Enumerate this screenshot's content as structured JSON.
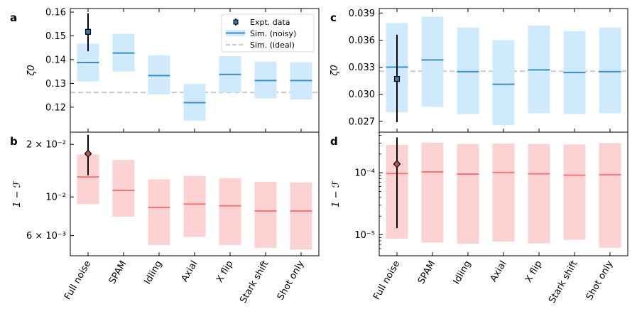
{
  "categories": [
    "Full noise",
    "SPAM",
    "Idling",
    "Axial",
    "X flip",
    "Stark shift",
    "Shot only"
  ],
  "colors": {
    "blue_fill": "#cfeafd",
    "blue_line": "#3d8ec6",
    "red_fill": "#fdd2d3",
    "red_line": "#f07878",
    "ideal_line": "#c8c8c8",
    "blue_marker": "#3a78a8",
    "red_marker": "#c05050"
  },
  "legend": {
    "expt": "Expt. data",
    "noisy": "Sim. (noisy)",
    "ideal": "Sim. (ideal)"
  },
  "chart_data": [
    {
      "panel": "a",
      "type": "box",
      "ylabel": "ζ0",
      "ylim": [
        0.1095,
        0.1615
      ],
      "yscale": "linear",
      "yticks": [
        0.12,
        0.13,
        0.14,
        0.15,
        0.16
      ],
      "ytick_labels": [
        "0.12",
        "0.13",
        "0.14",
        "0.15",
        "0.16"
      ],
      "theme": "blue",
      "ideal": 0.1262,
      "sim": [
        {
          "median": 0.1388,
          "low": 0.1308,
          "high": 0.1467
        },
        {
          "median": 0.1428,
          "low": 0.135,
          "high": 0.1509
        },
        {
          "median": 0.1333,
          "low": 0.1254,
          "high": 0.1418
        },
        {
          "median": 0.1219,
          "low": 0.1143,
          "high": 0.1298
        },
        {
          "median": 0.1338,
          "low": 0.1262,
          "high": 0.1415
        },
        {
          "median": 0.1312,
          "low": 0.1237,
          "high": 0.1392
        },
        {
          "median": 0.1312,
          "low": 0.1232,
          "high": 0.1389
        }
      ],
      "expt": {
        "value": 0.1517,
        "low": 0.1435,
        "high": 0.1595
      },
      "show_legend": true,
      "show_xlabels": false
    },
    {
      "panel": "b",
      "type": "box",
      "ylabel": "1 − ℱ",
      "ylim": [
        0.0046,
        0.0235
      ],
      "yscale": "log",
      "yticks": [
        0.006,
        0.01,
        0.02
      ],
      "ytick_labels": [
        "6 × 10⁻³",
        "10⁻²",
        "2 × 10⁻²"
      ],
      "theme": "red",
      "sim": [
        {
          "median": 0.013,
          "low": 0.0091,
          "high": 0.0175
        },
        {
          "median": 0.0109,
          "low": 0.0077,
          "high": 0.0163
        },
        {
          "median": 0.0087,
          "low": 0.0053,
          "high": 0.0126
        },
        {
          "median": 0.0091,
          "low": 0.0059,
          "high": 0.0132
        },
        {
          "median": 0.0089,
          "low": 0.0053,
          "high": 0.0128
        },
        {
          "median": 0.0083,
          "low": 0.0051,
          "high": 0.0122
        },
        {
          "median": 0.0083,
          "low": 0.005,
          "high": 0.0121
        }
      ],
      "expt": {
        "value": 0.0177,
        "low": 0.0133,
        "high": 0.0227
      },
      "show_legend": false,
      "show_xlabels": true
    },
    {
      "panel": "c",
      "type": "box",
      "ylabel": "ζ0",
      "ylim": [
        0.0258,
        0.0395
      ],
      "yscale": "linear",
      "yticks": [
        0.027,
        0.03,
        0.033,
        0.036,
        0.039
      ],
      "ytick_labels": [
        "0.027",
        "0.030",
        "0.033",
        "0.036",
        "0.039"
      ],
      "theme": "blue",
      "ideal": 0.03255,
      "sim": [
        {
          "median": 0.033,
          "low": 0.028,
          "high": 0.0379
        },
        {
          "median": 0.0338,
          "low": 0.0286,
          "high": 0.0386
        },
        {
          "median": 0.0325,
          "low": 0.0278,
          "high": 0.0374
        },
        {
          "median": 0.0311,
          "low": 0.0266,
          "high": 0.036
        },
        {
          "median": 0.0327,
          "low": 0.0279,
          "high": 0.0376
        },
        {
          "median": 0.0324,
          "low": 0.0278,
          "high": 0.037
        },
        {
          "median": 0.0325,
          "low": 0.0279,
          "high": 0.0374
        }
      ],
      "expt": {
        "value": 0.0317,
        "low": 0.0269,
        "high": 0.0366
      },
      "show_legend": false,
      "show_xlabels": false
    },
    {
      "panel": "d",
      "type": "box",
      "ylabel": "1 − ℱ",
      "ylim": [
        4.6e-06,
        0.00045
      ],
      "yscale": "log",
      "yticks": [
        1e-05,
        0.0001
      ],
      "ytick_labels": [
        "10⁻⁵",
        "10⁻⁴"
      ],
      "minor_ticks": [
        6e-06,
        7e-06,
        8e-06,
        9e-06,
        2e-05,
        3e-05,
        4e-05,
        5e-05,
        6e-05,
        7e-05,
        8e-05,
        9e-05,
        0.0002,
        0.0003,
        0.0004
      ],
      "theme": "red",
      "sim": [
        {
          "median": 9.7e-05,
          "low": 8.7e-06,
          "high": 0.00028
        },
        {
          "median": 0.000103,
          "low": 7.5e-06,
          "high": 0.000305
        },
        {
          "median": 9.5e-05,
          "low": 7.2e-06,
          "high": 0.00029
        },
        {
          "median": 0.000101,
          "low": 7.8e-06,
          "high": 0.000295
        },
        {
          "median": 9.6e-05,
          "low": 7.3e-06,
          "high": 0.00029
        },
        {
          "median": 9.1e-05,
          "low": 8.3e-06,
          "high": 0.000285
        },
        {
          "median": 9.3e-05,
          "low": 6.2e-06,
          "high": 0.0003
        }
      ],
      "expt": {
        "value": 0.000138,
        "low": 1.28e-05,
        "high": 0.00037
      },
      "show_legend": false,
      "show_xlabels": true
    }
  ]
}
